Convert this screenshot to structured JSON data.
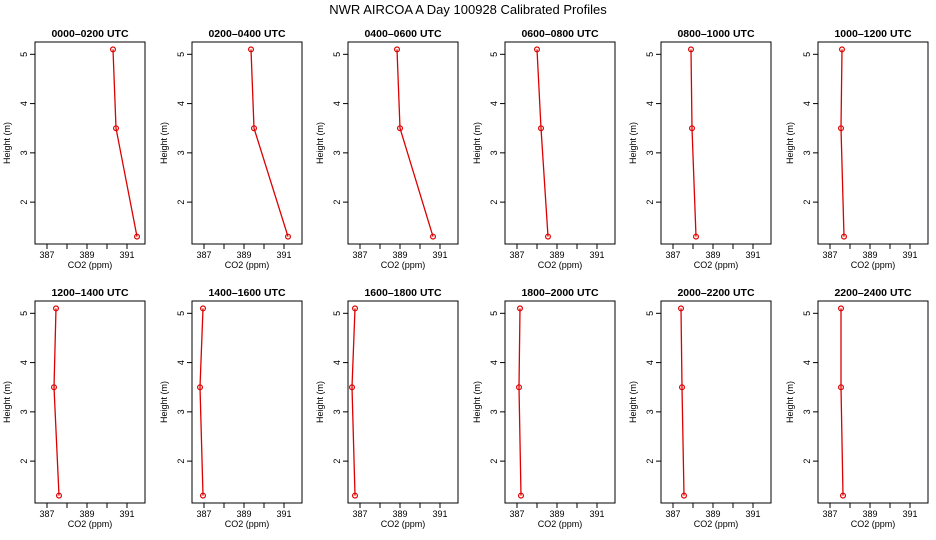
{
  "suptitle": "NWR AIRCOA A  Day 100928  Calibrated Profiles",
  "chart_data": [
    {
      "type": "line",
      "title": "0000–0200 UTC",
      "xlabel": "CO2 (ppm)",
      "ylabel": "Height (m)",
      "xlim": [
        386.4,
        391.9
      ],
      "ylim": [
        1.15,
        5.25
      ],
      "xticks": [
        387,
        388,
        389,
        390,
        391
      ],
      "xtick_labels": [
        "387",
        "",
        "389",
        "",
        "391"
      ],
      "yticks": [
        2,
        3,
        4,
        5
      ],
      "ytick_labels": [
        "2",
        "3",
        "4",
        "5"
      ],
      "series": [
        {
          "x": [
            391.5,
            390.45,
            390.3
          ],
          "y": [
            1.3,
            3.5,
            5.1
          ],
          "color": "#dd0000"
        }
      ]
    },
    {
      "type": "line",
      "title": "0200–0400 UTC",
      "xlabel": "CO2 (ppm)",
      "ylabel": "Height (m)",
      "xlim": [
        386.4,
        391.9
      ],
      "ylim": [
        1.15,
        5.25
      ],
      "xticks": [
        387,
        388,
        389,
        390,
        391
      ],
      "xtick_labels": [
        "387",
        "",
        "389",
        "",
        "391"
      ],
      "yticks": [
        2,
        3,
        4,
        5
      ],
      "ytick_labels": [
        "2",
        "3",
        "4",
        "5"
      ],
      "series": [
        {
          "x": [
            391.2,
            389.5,
            389.35
          ],
          "y": [
            1.3,
            3.5,
            5.1
          ],
          "color": "#dd0000"
        }
      ]
    },
    {
      "type": "line",
      "title": "0400–0600 UTC",
      "xlabel": "CO2 (ppm)",
      "ylabel": "Height (m)",
      "xlim": [
        386.4,
        391.9
      ],
      "ylim": [
        1.15,
        5.25
      ],
      "xticks": [
        387,
        388,
        389,
        390,
        391
      ],
      "xtick_labels": [
        "387",
        "",
        "389",
        "",
        "391"
      ],
      "yticks": [
        2,
        3,
        4,
        5
      ],
      "ytick_labels": [
        "2",
        "3",
        "4",
        "5"
      ],
      "series": [
        {
          "x": [
            390.65,
            389.0,
            388.85
          ],
          "y": [
            1.3,
            3.5,
            5.1
          ],
          "color": "#dd0000"
        }
      ]
    },
    {
      "type": "line",
      "title": "0600–0800 UTC",
      "xlabel": "CO2 (ppm)",
      "ylabel": "Height (m)",
      "xlim": [
        386.4,
        391.9
      ],
      "ylim": [
        1.15,
        5.25
      ],
      "xticks": [
        387,
        388,
        389,
        390,
        391
      ],
      "xtick_labels": [
        "387",
        "",
        "389",
        "",
        "391"
      ],
      "yticks": [
        2,
        3,
        4,
        5
      ],
      "ytick_labels": [
        "2",
        "3",
        "4",
        "5"
      ],
      "series": [
        {
          "x": [
            388.55,
            388.2,
            388.0
          ],
          "y": [
            1.3,
            3.5,
            5.1
          ],
          "color": "#dd0000"
        }
      ]
    },
    {
      "type": "line",
      "title": "0800–1000 UTC",
      "xlabel": "CO2 (ppm)",
      "ylabel": "Height (m)",
      "xlim": [
        386.4,
        391.9
      ],
      "ylim": [
        1.15,
        5.25
      ],
      "xticks": [
        387,
        388,
        389,
        390,
        391
      ],
      "xtick_labels": [
        "387",
        "",
        "389",
        "",
        "391"
      ],
      "yticks": [
        2,
        3,
        4,
        5
      ],
      "ytick_labels": [
        "2",
        "3",
        "4",
        "5"
      ],
      "series": [
        {
          "x": [
            388.15,
            387.95,
            387.9
          ],
          "y": [
            1.3,
            3.5,
            5.1
          ],
          "color": "#dd0000"
        }
      ]
    },
    {
      "type": "line",
      "title": "1000–1200 UTC",
      "xlabel": "CO2 (ppm)",
      "ylabel": "Height (m)",
      "xlim": [
        386.4,
        391.9
      ],
      "ylim": [
        1.15,
        5.25
      ],
      "xticks": [
        387,
        388,
        389,
        390,
        391
      ],
      "xtick_labels": [
        "387",
        "",
        "389",
        "",
        "391"
      ],
      "yticks": [
        2,
        3,
        4,
        5
      ],
      "ytick_labels": [
        "2",
        "3",
        "4",
        "5"
      ],
      "series": [
        {
          "x": [
            387.7,
            387.55,
            387.6
          ],
          "y": [
            1.3,
            3.5,
            5.1
          ],
          "color": "#dd0000"
        }
      ]
    },
    {
      "type": "line",
      "title": "1200–1400 UTC",
      "xlabel": "CO2 (ppm)",
      "ylabel": "Height (m)",
      "xlim": [
        386.4,
        391.9
      ],
      "ylim": [
        1.15,
        5.25
      ],
      "xticks": [
        387,
        388,
        389,
        390,
        391
      ],
      "xtick_labels": [
        "387",
        "",
        "389",
        "",
        "391"
      ],
      "yticks": [
        2,
        3,
        4,
        5
      ],
      "ytick_labels": [
        "2",
        "3",
        "4",
        "5"
      ],
      "series": [
        {
          "x": [
            387.6,
            387.35,
            387.45
          ],
          "y": [
            1.3,
            3.5,
            5.1
          ],
          "color": "#dd0000"
        }
      ]
    },
    {
      "type": "line",
      "title": "1400–1600 UTC",
      "xlabel": "CO2 (ppm)",
      "ylabel": "Height (m)",
      "xlim": [
        386.4,
        391.9
      ],
      "ylim": [
        1.15,
        5.25
      ],
      "xticks": [
        387,
        388,
        389,
        390,
        391
      ],
      "xtick_labels": [
        "387",
        "",
        "389",
        "",
        "391"
      ],
      "yticks": [
        2,
        3,
        4,
        5
      ],
      "ytick_labels": [
        "2",
        "3",
        "4",
        "5"
      ],
      "series": [
        {
          "x": [
            386.95,
            386.8,
            386.95
          ],
          "y": [
            1.3,
            3.5,
            5.1
          ],
          "color": "#dd0000"
        }
      ]
    },
    {
      "type": "line",
      "title": "1600–1800 UTC",
      "xlabel": "CO2 (ppm)",
      "ylabel": "Height (m)",
      "xlim": [
        386.4,
        391.9
      ],
      "ylim": [
        1.15,
        5.25
      ],
      "xticks": [
        387,
        388,
        389,
        390,
        391
      ],
      "xtick_labels": [
        "387",
        "",
        "389",
        "",
        "391"
      ],
      "yticks": [
        2,
        3,
        4,
        5
      ],
      "ytick_labels": [
        "2",
        "3",
        "4",
        "5"
      ],
      "series": [
        {
          "x": [
            386.75,
            386.6,
            386.75
          ],
          "y": [
            1.3,
            3.5,
            5.1
          ],
          "color": "#dd0000"
        }
      ]
    },
    {
      "type": "line",
      "title": "1800–2000 UTC",
      "xlabel": "CO2 (ppm)",
      "ylabel": "Height (m)",
      "xlim": [
        386.4,
        391.9
      ],
      "ylim": [
        1.15,
        5.25
      ],
      "xticks": [
        387,
        388,
        389,
        390,
        391
      ],
      "xtick_labels": [
        "387",
        "",
        "389",
        "",
        "391"
      ],
      "yticks": [
        2,
        3,
        4,
        5
      ],
      "ytick_labels": [
        "2",
        "3",
        "4",
        "5"
      ],
      "series": [
        {
          "x": [
            387.2,
            387.1,
            387.15
          ],
          "y": [
            1.3,
            3.5,
            5.1
          ],
          "color": "#dd0000"
        }
      ]
    },
    {
      "type": "line",
      "title": "2000–2200 UTC",
      "xlabel": "CO2 (ppm)",
      "ylabel": "Height (m)",
      "xlim": [
        386.4,
        391.9
      ],
      "ylim": [
        1.15,
        5.25
      ],
      "xticks": [
        387,
        388,
        389,
        390,
        391
      ],
      "xtick_labels": [
        "387",
        "",
        "389",
        "",
        "391"
      ],
      "yticks": [
        2,
        3,
        4,
        5
      ],
      "ytick_labels": [
        "2",
        "3",
        "4",
        "5"
      ],
      "series": [
        {
          "x": [
            387.55,
            387.45,
            387.4
          ],
          "y": [
            1.3,
            3.5,
            5.1
          ],
          "color": "#dd0000"
        }
      ]
    },
    {
      "type": "line",
      "title": "2200–2400 UTC",
      "xlabel": "CO2 (ppm)",
      "ylabel": "Height (m)",
      "xlim": [
        386.4,
        391.9
      ],
      "ylim": [
        1.15,
        5.25
      ],
      "xticks": [
        387,
        388,
        389,
        390,
        391
      ],
      "xtick_labels": [
        "387",
        "",
        "389",
        "",
        "391"
      ],
      "yticks": [
        2,
        3,
        4,
        5
      ],
      "ytick_labels": [
        "2",
        "3",
        "4",
        "5"
      ],
      "series": [
        {
          "x": [
            387.65,
            387.55,
            387.55
          ],
          "y": [
            1.3,
            3.5,
            5.1
          ],
          "color": "#dd0000"
        }
      ]
    }
  ]
}
